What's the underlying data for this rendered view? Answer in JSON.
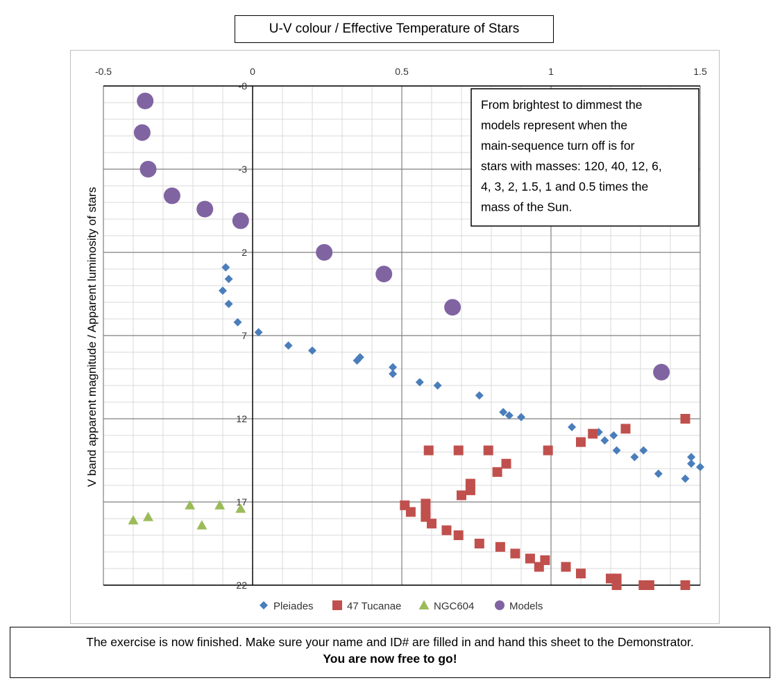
{
  "chart_data": {
    "type": "scatter",
    "title": "U-V colour / Effective Temperature of Stars",
    "xlabel": "",
    "ylabel": "V band apparent magnitude / Apparent luminosity of stars",
    "xlim": [
      -0.5,
      1.5
    ],
    "ylim": [
      -8,
      22
    ],
    "y_inverted": true,
    "x_ticks": [
      "-0.5",
      "0",
      "0.5",
      "1",
      "1.5"
    ],
    "y_ticks": [
      "-8",
      "-3",
      "2",
      "7",
      "12",
      "17",
      "22"
    ],
    "grid": true,
    "legend_position": "bottom",
    "annotation": [
      "From brightest to dimmest the",
      "models represent when the",
      "main-sequence turn off is for",
      "stars with masses: 120, 40, 12, 6,",
      "4, 3, 2, 1.5, 1 and 0.5 times the",
      "mass of the Sun."
    ],
    "series": [
      {
        "name": "Pleiades",
        "marker": "diamond",
        "color": "#4a7ebb",
        "points": [
          [
            -0.09,
            2.9
          ],
          [
            -0.08,
            3.6
          ],
          [
            -0.1,
            4.3
          ],
          [
            -0.08,
            5.1
          ],
          [
            -0.05,
            6.2
          ],
          [
            0.02,
            6.8
          ],
          [
            0.12,
            7.6
          ],
          [
            0.2,
            7.9
          ],
          [
            0.35,
            8.5
          ],
          [
            0.36,
            8.3
          ],
          [
            0.47,
            8.9
          ],
          [
            0.47,
            9.3
          ],
          [
            0.56,
            9.8
          ],
          [
            0.62,
            10.0
          ],
          [
            0.76,
            10.6
          ],
          [
            0.84,
            11.6
          ],
          [
            0.86,
            11.8
          ],
          [
            0.9,
            11.9
          ],
          [
            1.07,
            12.5
          ],
          [
            1.16,
            12.8
          ],
          [
            1.18,
            13.3
          ],
          [
            1.21,
            13.0
          ],
          [
            1.22,
            13.9
          ],
          [
            1.28,
            14.3
          ],
          [
            1.31,
            13.9
          ],
          [
            1.36,
            15.3
          ],
          [
            1.45,
            15.6
          ],
          [
            1.47,
            14.3
          ],
          [
            1.47,
            14.7
          ],
          [
            1.5,
            14.9
          ]
        ]
      },
      {
        "name": "47 Tucanae",
        "marker": "square",
        "color": "#c0504d",
        "points": [
          [
            0.59,
            13.9
          ],
          [
            0.69,
            13.9
          ],
          [
            0.79,
            13.9
          ],
          [
            0.99,
            13.9
          ],
          [
            1.45,
            12.0
          ],
          [
            1.25,
            12.6
          ],
          [
            1.14,
            12.9
          ],
          [
            1.1,
            13.4
          ],
          [
            0.85,
            14.7
          ],
          [
            0.82,
            15.2
          ],
          [
            0.73,
            15.9
          ],
          [
            0.73,
            16.3
          ],
          [
            0.7,
            16.6
          ],
          [
            0.51,
            17.2
          ],
          [
            0.53,
            17.6
          ],
          [
            0.58,
            17.1
          ],
          [
            0.58,
            17.6
          ],
          [
            0.58,
            17.9
          ],
          [
            0.6,
            18.3
          ],
          [
            0.65,
            18.7
          ],
          [
            0.69,
            19.0
          ],
          [
            0.76,
            19.5
          ],
          [
            0.83,
            19.7
          ],
          [
            0.88,
            20.1
          ],
          [
            0.93,
            20.4
          ],
          [
            0.96,
            20.9
          ],
          [
            0.98,
            20.5
          ],
          [
            1.05,
            20.9
          ],
          [
            1.1,
            21.3
          ],
          [
            1.2,
            21.6
          ],
          [
            1.22,
            21.6
          ],
          [
            1.22,
            22.0
          ],
          [
            1.31,
            22.0
          ],
          [
            1.33,
            22.0
          ],
          [
            1.45,
            22.0
          ]
        ]
      },
      {
        "name": "NGC604",
        "marker": "triangle",
        "color": "#9bbb59",
        "points": [
          [
            -0.4,
            18.1
          ],
          [
            -0.35,
            17.9
          ],
          [
            -0.21,
            17.2
          ],
          [
            -0.17,
            18.4
          ],
          [
            -0.11,
            17.2
          ],
          [
            -0.04,
            17.4
          ]
        ]
      },
      {
        "name": "Models",
        "marker": "circle",
        "color": "#8064a2",
        "points": [
          [
            -0.36,
            -7.1
          ],
          [
            -0.37,
            -5.2
          ],
          [
            -0.35,
            -3.0
          ],
          [
            -0.27,
            -1.4
          ],
          [
            -0.16,
            -0.6
          ],
          [
            -0.04,
            0.1
          ],
          [
            0.24,
            2.0
          ],
          [
            0.44,
            3.3
          ],
          [
            0.67,
            5.3
          ],
          [
            1.37,
            9.2
          ]
        ]
      }
    ]
  },
  "footer": {
    "line1": "The exercise is now finished. Make sure your name and ID# are filled in and hand this sheet to the Demonstrator.",
    "line2": "You are now free to go!"
  }
}
